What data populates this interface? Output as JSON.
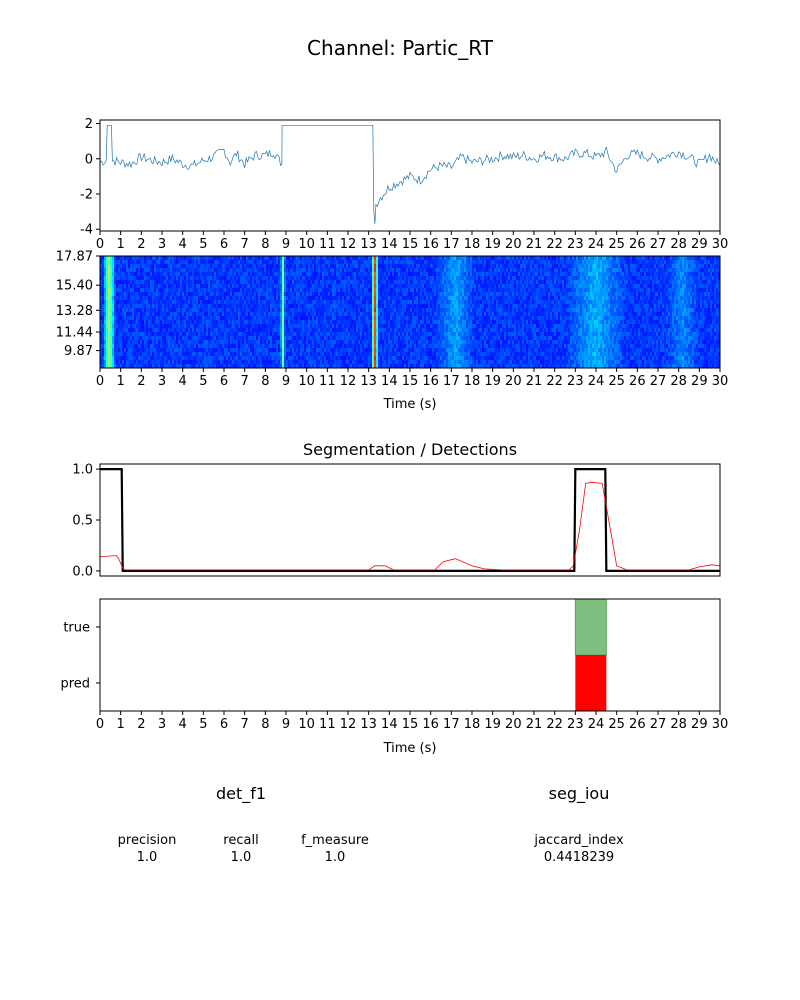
{
  "figure": {
    "title": "Channel: Partic_RT"
  },
  "chart_data": [
    {
      "id": "signal",
      "type": "line",
      "title": "",
      "xlim": [
        0,
        30
      ],
      "ylim": [
        -4.1,
        2.2
      ],
      "yticks": [
        2,
        0,
        -2,
        -4
      ],
      "xticks": [
        0,
        1,
        2,
        3,
        4,
        5,
        6,
        7,
        8,
        9,
        10,
        11,
        12,
        13,
        14,
        15,
        16,
        17,
        18,
        19,
        20,
        21,
        22,
        23,
        24,
        25,
        26,
        27,
        28,
        29,
        30
      ],
      "series": [
        {
          "color": "#1f77b4",
          "x": [
            0,
            0.3,
            0.35,
            0.55,
            0.6,
            1,
            1.5,
            2,
            2.5,
            3,
            3.5,
            4,
            4.5,
            5,
            5.5,
            6,
            6.3,
            6.6,
            7,
            7.5,
            8,
            8.4,
            8.8,
            8.81,
            13.2,
            13.25,
            13.3,
            13.35,
            13.5,
            14,
            14.5,
            15,
            15.5,
            16,
            16.5,
            17,
            17.5,
            18,
            18.5,
            19,
            19.5,
            20,
            20.5,
            21,
            21.5,
            22,
            22.5,
            23,
            23.5,
            24,
            24.5,
            25,
            25.5,
            26,
            26.5,
            27,
            27.5,
            28,
            28.5,
            29,
            29.5,
            30
          ],
          "y": [
            -0.2,
            -0.1,
            1.9,
            1.9,
            -0.1,
            -0.2,
            -0.3,
            0.1,
            -0.1,
            -0.2,
            0.0,
            -0.3,
            -0.4,
            -0.1,
            0.1,
            0.5,
            -0.2,
            0.3,
            -0.3,
            0.2,
            0.2,
            0.4,
            -0.3,
            1.9,
            1.9,
            -3.0,
            -3.7,
            -2.6,
            -2.3,
            -1.6,
            -1.3,
            -1.0,
            -1.2,
            -0.6,
            -0.4,
            -0.5,
            0.1,
            -0.2,
            -0.1,
            0.0,
            0.2,
            0.1,
            0.2,
            0.0,
            0.2,
            0.1,
            0.0,
            0.3,
            0.3,
            0.1,
            0.4,
            -0.7,
            0.2,
            0.3,
            0.1,
            0.0,
            0.2,
            0.4,
            0.1,
            -0.3,
            0.2,
            -0.4
          ]
        }
      ]
    },
    {
      "id": "spectrogram",
      "type": "heatmap",
      "title": "",
      "xlabel": "Time (s)",
      "xlim": [
        0,
        30
      ],
      "ylim": [
        8.4,
        17.87
      ],
      "yticks": [
        17.87,
        15.4,
        13.28,
        11.44,
        9.87
      ],
      "ytick_labels": [
        "17.87",
        "15.40",
        "13.28",
        "11.44",
        "9.87"
      ],
      "xticks": [
        0,
        1,
        2,
        3,
        4,
        5,
        6,
        7,
        8,
        9,
        10,
        11,
        12,
        13,
        14,
        15,
        16,
        17,
        18,
        19,
        20,
        21,
        22,
        23,
        24,
        25,
        26,
        27,
        28,
        29,
        30
      ],
      "colormap": "jet",
      "base_intensity": 0.18,
      "bursts": [
        {
          "t": 0.45,
          "width": 0.3,
          "intensity": 0.55
        },
        {
          "t": 8.85,
          "width": 0.12,
          "intensity": 0.5
        },
        {
          "t": 13.3,
          "width": 0.15,
          "intensity": 0.85
        },
        {
          "t": 17.2,
          "width": 1.0,
          "intensity": 0.28
        },
        {
          "t": 24.0,
          "width": 1.5,
          "intensity": 0.3
        },
        {
          "t": 28.2,
          "width": 0.8,
          "intensity": 0.26
        }
      ]
    },
    {
      "id": "segmentation",
      "type": "line",
      "title": "Segmentation / Detections",
      "xlim": [
        0,
        30
      ],
      "ylim": [
        -0.05,
        1.05
      ],
      "yticks": [
        1.0,
        0.5,
        0.0
      ],
      "ytick_labels": [
        "1.0",
        "0.5",
        "0.0"
      ],
      "series": [
        {
          "name": "true",
          "color": "#000000",
          "x": [
            0,
            1.05,
            1.1,
            22.95,
            23.0,
            24.45,
            24.5,
            30
          ],
          "y": [
            1,
            1,
            0,
            0,
            1,
            1,
            0,
            0
          ]
        },
        {
          "name": "pred",
          "color": "#ff0000",
          "x": [
            0,
            0.8,
            0.9,
            1.1,
            1.2,
            3,
            13.0,
            13.3,
            13.8,
            14.2,
            16.2,
            16.6,
            17.2,
            18,
            18.6,
            19.5,
            22.7,
            22.9,
            23.2,
            23.5,
            23.8,
            24.3,
            24.7,
            25.0,
            25.5,
            28.5,
            29.0,
            29.6,
            30
          ],
          "y": [
            0.14,
            0.15,
            0.12,
            0.03,
            0.01,
            0.01,
            0.01,
            0.05,
            0.05,
            0.01,
            0.01,
            0.09,
            0.12,
            0.05,
            0.02,
            0.01,
            0.01,
            0.05,
            0.4,
            0.86,
            0.87,
            0.86,
            0.4,
            0.05,
            0.01,
            0.01,
            0.04,
            0.06,
            0.05
          ]
        }
      ]
    },
    {
      "id": "detections",
      "type": "bar",
      "title": "",
      "xlabel": "Time (s)",
      "xlim": [
        0,
        30
      ],
      "categories": [
        "true",
        "pred"
      ],
      "xticks": [
        0,
        1,
        2,
        3,
        4,
        5,
        6,
        7,
        8,
        9,
        10,
        11,
        12,
        13,
        14,
        15,
        16,
        17,
        18,
        19,
        20,
        21,
        22,
        23,
        24,
        25,
        26,
        27,
        28,
        29,
        30
      ],
      "intervals": [
        {
          "row": "true",
          "start": 23.0,
          "end": 24.5,
          "color": "#7fbf7f"
        },
        {
          "row": "pred",
          "start": 23.0,
          "end": 24.5,
          "color": "#ff0000"
        }
      ]
    }
  ],
  "metrics": {
    "det": {
      "title": "det_f1",
      "items": [
        {
          "label": "precision",
          "value": "1.0"
        },
        {
          "label": "recall",
          "value": "1.0"
        },
        {
          "label": "f_measure",
          "value": "1.0"
        }
      ]
    },
    "seg": {
      "title": "seg_iou",
      "items": [
        {
          "label": "jaccard_index",
          "value": "0.4418239"
        }
      ]
    }
  }
}
